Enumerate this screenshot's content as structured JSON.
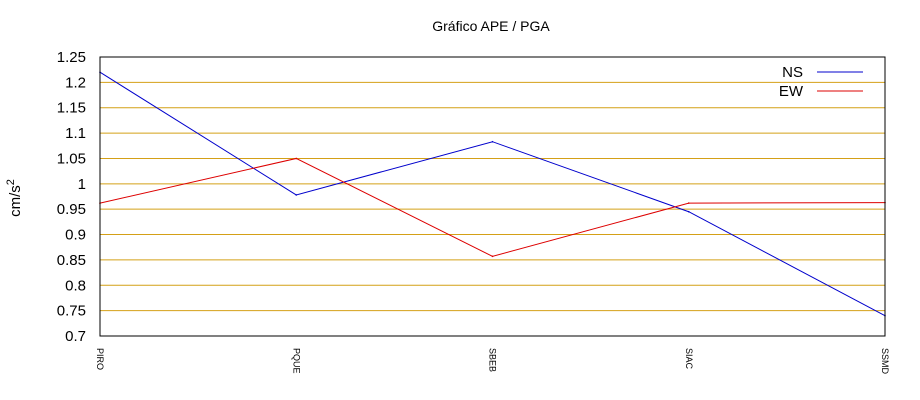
{
  "chart_data": {
    "type": "line",
    "title": "Gráfico  APE / PGA",
    "ylabel_base": "cm/s",
    "ylabel_sup": "2",
    "xlabel": "",
    "categories": [
      "PIRO",
      "PQUE",
      "SBEB",
      "SIAC",
      "SSMD"
    ],
    "ylim": [
      0.7,
      1.25
    ],
    "yticks": [
      "0.7",
      "0.75",
      "0.8",
      "0.85",
      "0.9",
      "0.95",
      "1",
      "1.05",
      "1.1",
      "1.15",
      "1.2",
      "1.25"
    ],
    "grid": true,
    "grid_color": "#d4a017",
    "legend_position": "top-right",
    "series": [
      {
        "name": "NS",
        "color": "#0000cc",
        "values": [
          1.22,
          0.978,
          1.083,
          0.945,
          0.74
        ]
      },
      {
        "name": "EW",
        "color": "#dd0000",
        "values": [
          0.962,
          1.05,
          0.857,
          0.962,
          0.963
        ]
      }
    ]
  }
}
